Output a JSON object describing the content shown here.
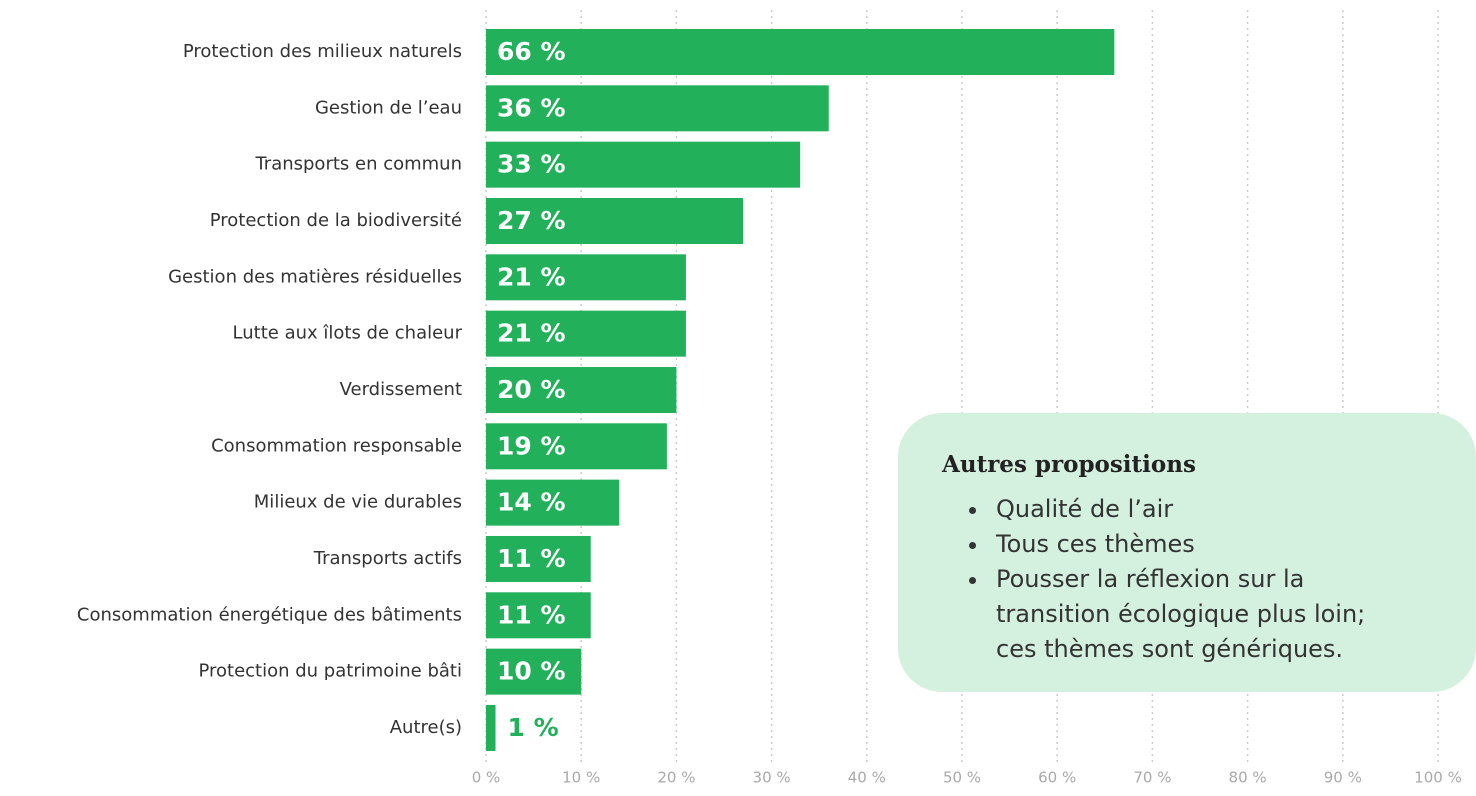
{
  "chart_data": {
    "type": "bar",
    "orientation": "horizontal",
    "categories": [
      "Protection des milieux naturels",
      "Gestion de l’eau",
      "Transports en commun",
      "Protection de la biodiversité",
      "Gestion des matières résiduelles",
      "Lutte aux îlots de chaleur",
      "Verdissement",
      "Consommation responsable",
      "Milieux de vie durables",
      "Transports actifs",
      "Consommation énergétique des bâtiments",
      "Protection du patrimoine bâti",
      "Autre(s)"
    ],
    "values": [
      66,
      36,
      33,
      27,
      21,
      21,
      20,
      19,
      14,
      11,
      11,
      10,
      1
    ],
    "value_labels": [
      "66 %",
      "36 %",
      "33 %",
      "27 %",
      "21 %",
      "21 %",
      "20 %",
      "19 %",
      "14 %",
      "11 %",
      "11 %",
      "10 %",
      "1 %"
    ],
    "color": "#22b05a",
    "xlim": [
      0,
      100
    ],
    "xticks": [
      {
        "value": 0,
        "label": "0 %"
      },
      {
        "value": 10,
        "label": "10 %"
      },
      {
        "value": 20,
        "label": "20 %"
      },
      {
        "value": 30,
        "label": "30 %"
      },
      {
        "value": 40,
        "label": "40 %"
      },
      {
        "value": 50,
        "label": "50 %"
      },
      {
        "value": 60,
        "label": "60 %"
      },
      {
        "value": 70,
        "label": "70 %"
      },
      {
        "value": 80,
        "label": "80 %"
      },
      {
        "value": 90,
        "label": "90 %"
      },
      {
        "value": 100,
        "label": "100 %"
      }
    ],
    "grid": true,
    "annotation": {
      "title": "Autres propositions",
      "items": [
        "Qualité de l’air",
        "Tous ces thèmes",
        "Pousser la réflexion sur la transition écologique plus loin; ces thèmes sont génériques."
      ]
    }
  }
}
